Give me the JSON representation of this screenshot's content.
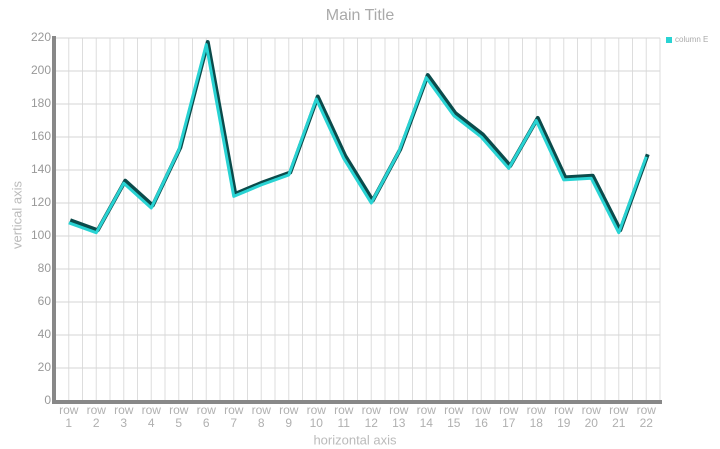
{
  "chart_data": {
    "type": "line",
    "title": "Main Title",
    "x_label": "horizontal axis",
    "y_label": "vertical axis",
    "categories": [
      "row 1",
      "row 2",
      "row 3",
      "row 4",
      "row 5",
      "row 6",
      "row 7",
      "row 8",
      "row 9",
      "row 10",
      "row 11",
      "row 12",
      "row 13",
      "row 14",
      "row 15",
      "row 16",
      "row 17",
      "row 18",
      "row 19",
      "row 20",
      "row 21",
      "row 22"
    ],
    "series": [
      {
        "name": "column E",
        "color": "#29d3d3",
        "values": [
          108,
          102,
          132,
          117,
          152,
          216,
          124,
          131,
          137,
          183,
          147,
          120,
          151,
          196,
          173,
          160,
          141,
          170,
          134,
          135,
          102,
          148
        ]
      }
    ],
    "ylim": [
      0,
      220
    ],
    "yticks": [
      0,
      20,
      40,
      60,
      80,
      100,
      120,
      140,
      160,
      180,
      200,
      220
    ],
    "grid": true,
    "legend": "top-right"
  }
}
